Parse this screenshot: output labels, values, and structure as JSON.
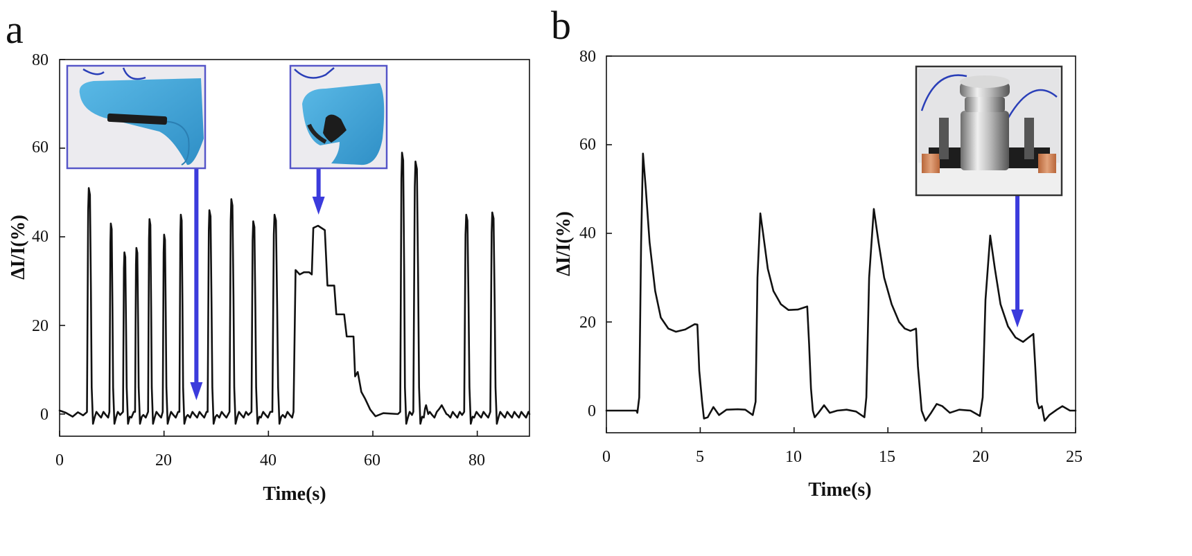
{
  "panels": [
    {
      "letter": "a"
    },
    {
      "letter": "b"
    }
  ],
  "colors": {
    "trace": "#111111",
    "arrow": "#3b3bdc",
    "inset_frame_a": "#5555c8",
    "inset_frame_b": "#333333"
  },
  "insets": {
    "a": [
      "finger-flat-photo-icon",
      "finger-bent-photo-icon"
    ],
    "b": [
      "weight-on-sensor-photo-icon"
    ]
  },
  "chart_data": [
    {
      "type": "line",
      "xlabel": "Time(s)",
      "ylabel": "ΔI/I(%)",
      "xlim": [
        0,
        90
      ],
      "ylim": [
        -5,
        80
      ],
      "xticks": [
        0,
        20,
        40,
        60,
        80
      ],
      "yticks": [
        0,
        20,
        40,
        60,
        80
      ],
      "grid": false,
      "baseline": [
        [
          0,
          0.8
        ],
        [
          1.2,
          0.3
        ],
        [
          2.5,
          -0.6
        ],
        [
          3.5,
          0.4
        ],
        [
          4.5,
          -0.3
        ],
        [
          5.2,
          0.4
        ]
      ],
      "peaks": [
        {
          "t": 5.7,
          "peak": 51,
          "w": 0.9
        },
        {
          "t": 9.9,
          "peak": 43,
          "w": 0.7
        },
        {
          "t": 12.5,
          "peak": 36.5,
          "w": 0.7
        },
        {
          "t": 14.8,
          "peak": 37.5,
          "w": 0.7
        },
        {
          "t": 17.3,
          "peak": 44,
          "w": 0.7
        },
        {
          "t": 20.1,
          "peak": 40.5,
          "w": 0.7
        },
        {
          "t": 23.3,
          "peak": 45,
          "w": 0.7
        },
        {
          "t": 28.8,
          "peak": 46,
          "w": 0.9
        },
        {
          "t": 33.0,
          "peak": 48.5,
          "w": 0.9
        },
        {
          "t": 37.2,
          "peak": 43.5,
          "w": 0.9
        },
        {
          "t": 41.3,
          "peak": 45,
          "w": 1.1
        },
        {
          "t": 65.7,
          "peak": 59,
          "w": 0.9
        },
        {
          "t": 68.3,
          "peak": 57,
          "w": 1.1
        },
        {
          "t": 78.0,
          "peak": 45,
          "w": 1.0
        },
        {
          "t": 83.0,
          "peak": 45.5,
          "w": 1.0
        }
      ],
      "plateau": [
        [
          44.8,
          0.5
        ],
        [
          45.2,
          32.5
        ],
        [
          46.0,
          31.5
        ],
        [
          46.8,
          32.0
        ],
        [
          47.8,
          32.0
        ],
        [
          48.3,
          31.5
        ],
        [
          48.6,
          42.0
        ],
        [
          49.5,
          42.5
        ],
        [
          50.8,
          41.5
        ],
        [
          51.3,
          29.0
        ],
        [
          52.6,
          29.0
        ],
        [
          53.0,
          22.5
        ],
        [
          54.5,
          22.5
        ],
        [
          55.0,
          17.5
        ],
        [
          56.3,
          17.5
        ],
        [
          56.6,
          8.5
        ],
        [
          57.1,
          9.5
        ],
        [
          57.8,
          5.0
        ],
        [
          58.5,
          3.5
        ],
        [
          59.5,
          1.0
        ],
        [
          60.5,
          -0.5
        ],
        [
          62.0,
          0.2
        ],
        [
          64.8,
          0.0
        ]
      ],
      "bumps": [
        {
          "t": 70.2,
          "h": 2.0,
          "w": 0.4
        },
        {
          "t": 73.2,
          "h": 2.0,
          "w": 0.9
        }
      ],
      "arrow_times": [
        26.2,
        49.6
      ]
    },
    {
      "type": "line",
      "xlabel": "Time(s)",
      "ylabel": "ΔI/I(%)",
      "xlim": [
        0,
        25
      ],
      "ylim": [
        -5,
        80
      ],
      "xticks": [
        0,
        5,
        10,
        15,
        20,
        25
      ],
      "yticks": [
        0,
        20,
        40,
        60,
        80
      ],
      "grid": false,
      "points": [
        [
          0,
          0
        ],
        [
          1.6,
          0
        ],
        [
          1.65,
          -0.5
        ],
        [
          1.75,
          3
        ],
        [
          1.85,
          38
        ],
        [
          1.95,
          58
        ],
        [
          2.1,
          50
        ],
        [
          2.3,
          38
        ],
        [
          2.6,
          27
        ],
        [
          2.9,
          21
        ],
        [
          3.3,
          18.5
        ],
        [
          3.7,
          17.8
        ],
        [
          4.2,
          18.3
        ],
        [
          4.7,
          19.5
        ],
        [
          4.85,
          19.4
        ],
        [
          4.95,
          9
        ],
        [
          5.1,
          2
        ],
        [
          5.2,
          -1.8
        ],
        [
          5.4,
          -1.5
        ],
        [
          5.7,
          0.8
        ],
        [
          6.0,
          -1.0
        ],
        [
          6.4,
          0.2
        ],
        [
          7.0,
          0.3
        ],
        [
          7.4,
          0.2
        ],
        [
          7.8,
          -1.0
        ],
        [
          7.95,
          2
        ],
        [
          8.05,
          30
        ],
        [
          8.2,
          44.5
        ],
        [
          8.35,
          40
        ],
        [
          8.6,
          32
        ],
        [
          8.9,
          27
        ],
        [
          9.3,
          24
        ],
        [
          9.7,
          22.7
        ],
        [
          10.2,
          22.8
        ],
        [
          10.7,
          23.5
        ],
        [
          10.8,
          15
        ],
        [
          10.9,
          5
        ],
        [
          11.0,
          0
        ],
        [
          11.1,
          -1.5
        ],
        [
          11.3,
          -0.5
        ],
        [
          11.6,
          1.2
        ],
        [
          11.9,
          -0.5
        ],
        [
          12.3,
          0
        ],
        [
          12.8,
          0.2
        ],
        [
          13.3,
          -0.2
        ],
        [
          13.75,
          -1.5
        ],
        [
          13.85,
          3
        ],
        [
          14.0,
          30
        ],
        [
          14.25,
          45.5
        ],
        [
          14.5,
          38
        ],
        [
          14.8,
          30
        ],
        [
          15.2,
          24
        ],
        [
          15.6,
          20
        ],
        [
          15.9,
          18.5
        ],
        [
          16.2,
          18.0
        ],
        [
          16.5,
          18.5
        ],
        [
          16.6,
          10
        ],
        [
          16.8,
          0
        ],
        [
          17.0,
          -2.3
        ],
        [
          17.3,
          -0.5
        ],
        [
          17.6,
          1.5
        ],
        [
          17.9,
          1.0
        ],
        [
          18.3,
          -0.5
        ],
        [
          18.8,
          0.2
        ],
        [
          19.4,
          0
        ],
        [
          19.9,
          -1.2
        ],
        [
          20.05,
          3
        ],
        [
          20.2,
          25
        ],
        [
          20.45,
          39.5
        ],
        [
          20.7,
          32
        ],
        [
          21.0,
          24
        ],
        [
          21.4,
          19
        ],
        [
          21.8,
          16.5
        ],
        [
          22.2,
          15.5
        ],
        [
          22.5,
          16.5
        ],
        [
          22.75,
          17.3
        ],
        [
          22.85,
          10
        ],
        [
          22.95,
          2
        ],
        [
          23.05,
          0.5
        ],
        [
          23.2,
          1.0
        ],
        [
          23.35,
          -2.3
        ],
        [
          23.6,
          -1.0
        ],
        [
          24.0,
          0.2
        ],
        [
          24.3,
          1.0
        ],
        [
          24.7,
          0
        ],
        [
          25,
          0
        ]
      ],
      "arrow_times": [
        21.9
      ]
    }
  ]
}
